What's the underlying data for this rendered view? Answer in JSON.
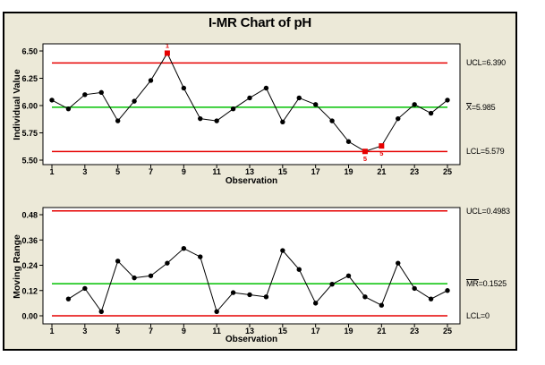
{
  "title": "I-MR Chart of pH",
  "colors": {
    "panel_background": "#ECE9D8",
    "plot_background": "#FFFFFF",
    "limit_line_red": "#E60000",
    "center_line_green": "#00C000",
    "series_black": "#000000",
    "out_of_control_red": "#E60000"
  },
  "chart_data": [
    {
      "type": "line",
      "name": "individuals-chart",
      "ylabel": "Individual Value",
      "xlabel": "Observation",
      "ytick_values": [
        6.5,
        6.25,
        6.0,
        5.75,
        5.5
      ],
      "ytick_labels": [
        "6.50",
        "6.25",
        "6.00",
        "5.75",
        "5.50"
      ],
      "xticks": [
        1,
        3,
        5,
        7,
        9,
        11,
        13,
        15,
        17,
        19,
        21,
        23,
        25
      ],
      "ylim": [
        5.45,
        6.55
      ],
      "ucl": 6.39,
      "center": 5.985,
      "lcl": 5.579,
      "ucl_label": "UCL=6.390",
      "center_label": "X=5.985",
      "center_overbar_chars": 1,
      "lcl_label": "LCL=5.579",
      "x": [
        1,
        2,
        3,
        4,
        5,
        6,
        7,
        8,
        9,
        10,
        11,
        12,
        13,
        14,
        15,
        16,
        17,
        18,
        19,
        20,
        21,
        22,
        23,
        24,
        25
      ],
      "values": [
        6.05,
        5.97,
        6.1,
        6.12,
        5.86,
        6.04,
        6.23,
        6.48,
        6.16,
        5.88,
        5.86,
        5.97,
        6.07,
        6.16,
        5.85,
        6.07,
        6.01,
        5.86,
        5.67,
        5.58,
        5.63,
        5.88,
        6.01,
        5.93,
        6.05
      ],
      "out_of_control_points": [
        8,
        20,
        21
      ],
      "annotations": [
        {
          "obs": 8,
          "text": "1",
          "position": "above"
        },
        {
          "obs": 20,
          "text": "5",
          "position": "below"
        },
        {
          "obs": 21,
          "text": "5",
          "position": "below"
        }
      ]
    },
    {
      "type": "line",
      "name": "moving-range-chart",
      "ylabel": "Moving Range",
      "xlabel": "Observation",
      "ytick_values": [
        0.48,
        0.36,
        0.24,
        0.12,
        0.0
      ],
      "ytick_labels": [
        "0.48",
        "0.36",
        "0.24",
        "0.12",
        "0.00"
      ],
      "xticks": [
        1,
        3,
        5,
        7,
        9,
        11,
        13,
        15,
        17,
        19,
        21,
        23,
        25
      ],
      "ylim": [
        -0.03,
        0.515
      ],
      "ucl": 0.4983,
      "center": 0.1525,
      "lcl": 0,
      "ucl_label": "UCL=0.4983",
      "center_label": "MR=0.1525",
      "center_overbar_chars": 2,
      "lcl_label": "LCL=0",
      "x": [
        2,
        3,
        4,
        5,
        6,
        7,
        8,
        9,
        10,
        11,
        12,
        13,
        14,
        15,
        16,
        17,
        18,
        19,
        20,
        21,
        22,
        23,
        24,
        25
      ],
      "values": [
        0.08,
        0.13,
        0.02,
        0.26,
        0.18,
        0.19,
        0.25,
        0.32,
        0.28,
        0.02,
        0.11,
        0.1,
        0.09,
        0.31,
        0.22,
        0.06,
        0.15,
        0.19,
        0.09,
        0.05,
        0.25,
        0.13,
        0.08,
        0.12
      ],
      "out_of_control_points": [],
      "annotations": []
    }
  ]
}
